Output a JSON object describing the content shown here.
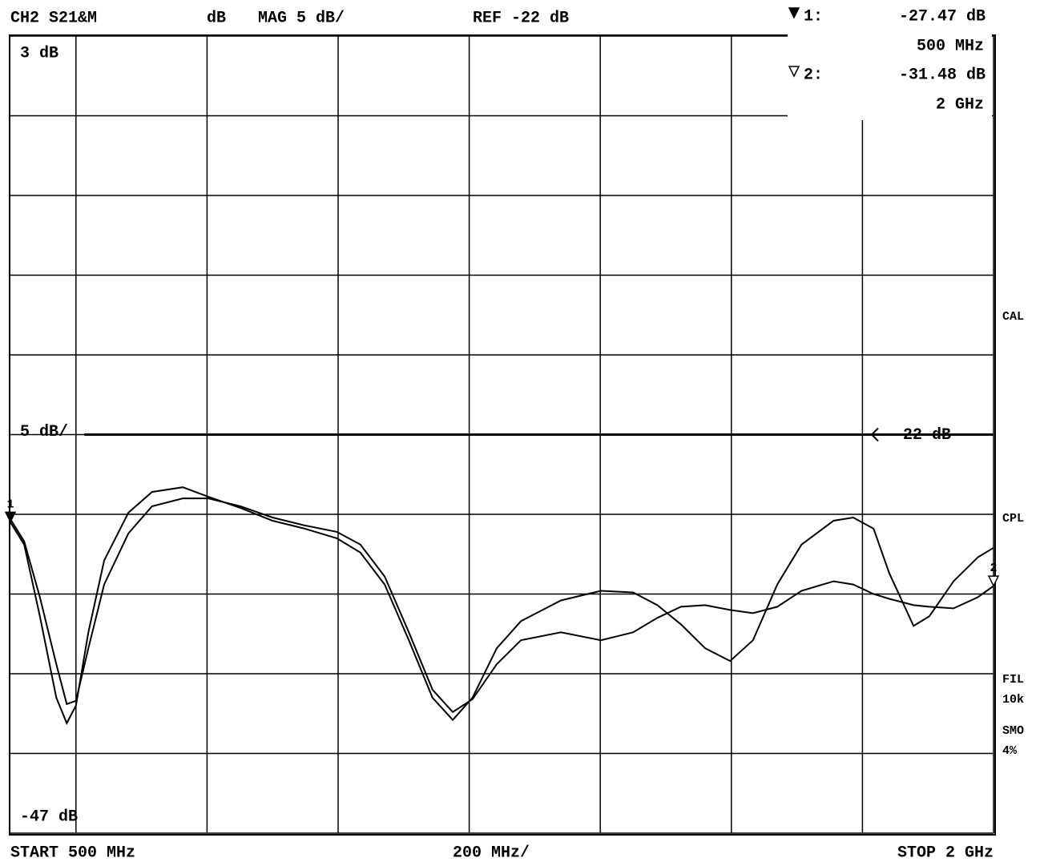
{
  "chart_data": {
    "type": "line",
    "header": [
      "CH2 S21&M",
      "dB",
      "MAG 5 dB/",
      "REF -22 dB"
    ],
    "y_top_label": "3 dB",
    "y_bottom_label": "-47 dB",
    "scale_label": "5 dB/",
    "ref_value": -22,
    "ref_label": "-22 dB",
    "footer": [
      "START  500 MHz",
      "200 MHz/",
      "STOP 2 GHz"
    ],
    "side_labels": [
      "CAL",
      "CPL",
      "FIL",
      "10k",
      "SMO",
      "4%"
    ],
    "xlim": [
      500,
      2000
    ],
    "xticks": [
      600,
      800,
      1000,
      1200,
      1400,
      1600,
      1800,
      2000
    ],
    "ylim": [
      -47,
      3
    ],
    "yticks": [
      -47,
      -42,
      -37,
      -32,
      -27,
      -22,
      -17,
      -12,
      -7,
      -2,
      3
    ],
    "grid": true,
    "x": [
      500,
      521,
      545,
      570,
      586,
      600,
      619,
      643,
      680,
      716,
      763,
      802,
      851,
      900,
      949,
      998,
      1034,
      1071,
      1108,
      1144,
      1175,
      1205,
      1242,
      1279,
      1340,
      1401,
      1450,
      1487,
      1523,
      1560,
      1598,
      1633,
      1670,
      1707,
      1756,
      1786,
      1817,
      1841,
      1878,
      1902,
      1939,
      1976,
      2000
    ],
    "series": [
      {
        "color": "#000000",
        "values": [
          -27.5,
          -28.9,
          -33.4,
          -38.5,
          -40.1,
          -39.0,
          -34.4,
          -29.9,
          -26.9,
          -25.6,
          -25.3,
          -25.9,
          -26.6,
          -27.4,
          -27.9,
          -28.5,
          -29.4,
          -31.4,
          -34.9,
          -38.5,
          -39.9,
          -38.5,
          -35.4,
          -33.7,
          -32.4,
          -31.8,
          -31.9,
          -32.7,
          -33.9,
          -35.4,
          -36.2,
          -34.9,
          -31.4,
          -28.9,
          -27.4,
          -27.2,
          -27.9,
          -30.7,
          -34.0,
          -33.4,
          -31.2,
          -29.7,
          -29.1
        ]
      },
      {
        "color": "#000000",
        "values": [
          -27.3,
          -28.7,
          -32.2,
          -36.4,
          -38.9,
          -38.7,
          -35.4,
          -31.4,
          -28.2,
          -26.5,
          -26.0,
          -26.0,
          -26.5,
          -27.2,
          -27.7,
          -28.1,
          -28.9,
          -30.9,
          -34.4,
          -38.0,
          -39.4,
          -38.6,
          -36.4,
          -34.9,
          -34.4,
          -34.9,
          -34.4,
          -33.5,
          -32.8,
          -32.7,
          -33.0,
          -33.2,
          -32.8,
          -31.8,
          -31.2,
          -31.4,
          -32.0,
          -32.3,
          -32.7,
          -32.8,
          -32.9,
          -32.2,
          -31.5
        ]
      }
    ],
    "markers": [
      {
        "name": "1",
        "readout_label": "1:",
        "x": 500,
        "value": -27.47,
        "value_label": "-27.47 dB",
        "x_label": "500 MHz",
        "filled": true
      },
      {
        "name": "2",
        "readout_label": "2:",
        "x": 2000,
        "value": -31.48,
        "value_label": "-31.48 dB",
        "x_label": "2 GHz",
        "filled": false
      }
    ]
  }
}
